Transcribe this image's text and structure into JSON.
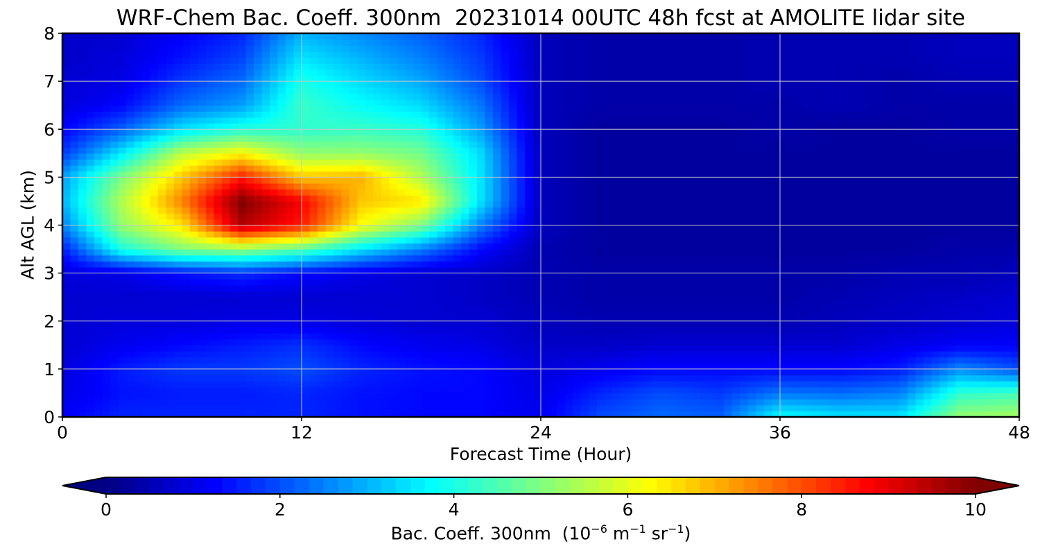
{
  "chart_data": {
    "type": "heatmap",
    "title": "WRF-Chem Bac. Coeff. 300nm  20231014 00UTC 48h fcst at AMOLITE lidar site",
    "xlabel": "Forecast Time (Hour)",
    "ylabel": "Alt AGL (km)",
    "colorbar_label_main": "Bac. Coeff. 300nm  (10",
    "colorbar_label_exp1": "−6",
    "colorbar_label_m": " m",
    "colorbar_label_exp2": "−1",
    "colorbar_label_sr": " sr",
    "colorbar_label_exp3": "−1",
    "colorbar_label_close": ")",
    "xlim": [
      0,
      48
    ],
    "ylim": [
      0,
      8
    ],
    "x_ticks": [
      "0",
      "12",
      "24",
      "36",
      "48"
    ],
    "y_ticks": [
      "0",
      "1",
      "2",
      "3",
      "4",
      "5",
      "6",
      "7",
      "8"
    ],
    "colorbar_ticks": [
      "0",
      "2",
      "4",
      "6",
      "8",
      "10"
    ],
    "colorbar_range": [
      0,
      10
    ],
    "colorbar_extend": "both",
    "colormap": "jet",
    "grid": true,
    "x": [
      0,
      3,
      6,
      9,
      12,
      15,
      18,
      21,
      24,
      27,
      30,
      33,
      36,
      39,
      42,
      45,
      48
    ],
    "y": [
      0,
      0.5,
      1,
      1.5,
      2,
      2.5,
      3,
      3.5,
      4,
      4.5,
      5,
      5.5,
      6,
      6.5,
      7,
      7.5,
      8
    ],
    "z": [
      [
        1.2,
        1.6,
        1.6,
        1.6,
        1.6,
        1.4,
        1.3,
        1.3,
        1.1,
        2.0,
        2.3,
        2.2,
        3.8,
        3.5,
        3.5,
        5.2,
        5.4
      ],
      [
        1.0,
        1.4,
        1.5,
        1.5,
        1.6,
        1.4,
        1.3,
        1.3,
        1.0,
        1.6,
        2.0,
        1.8,
        2.4,
        2.3,
        2.5,
        4.2,
        4.4
      ],
      [
        0.9,
        1.5,
        1.8,
        1.8,
        2.0,
        1.6,
        1.4,
        1.3,
        0.9,
        1.1,
        1.3,
        1.3,
        1.3,
        1.3,
        1.5,
        2.6,
        2.0
      ],
      [
        0.8,
        1.1,
        1.3,
        1.5,
        1.7,
        1.3,
        1.1,
        1.0,
        0.7,
        0.7,
        0.8,
        0.8,
        0.8,
        0.8,
        1.0,
        1.2,
        1.2
      ],
      [
        0.8,
        0.9,
        0.9,
        1.0,
        1.0,
        0.9,
        0.8,
        0.8,
        0.6,
        0.5,
        0.5,
        0.5,
        0.5,
        0.6,
        0.7,
        0.8,
        0.9
      ],
      [
        0.8,
        0.8,
        0.8,
        0.8,
        0.8,
        0.8,
        0.8,
        0.7,
        0.5,
        0.4,
        0.4,
        0.4,
        0.4,
        0.5,
        0.6,
        0.7,
        0.8
      ],
      [
        0.9,
        1.0,
        1.4,
        1.7,
        1.3,
        1.0,
        0.8,
        0.7,
        0.5,
        0.4,
        0.4,
        0.4,
        0.4,
        0.4,
        0.5,
        0.5,
        0.6
      ],
      [
        1.5,
        4.0,
        5.0,
        5.2,
        4.6,
        3.5,
        2.5,
        1.3,
        0.5,
        0.3,
        0.3,
        0.3,
        0.3,
        0.3,
        0.3,
        0.4,
        0.4
      ],
      [
        2.5,
        5.2,
        6.5,
        9.5,
        8.5,
        6.2,
        5.0,
        2.5,
        0.6,
        0.3,
        0.3,
        0.3,
        0.3,
        0.3,
        0.3,
        0.3,
        0.3
      ],
      [
        3.0,
        5.5,
        7.5,
        10.0,
        8.8,
        6.8,
        6.5,
        3.5,
        0.6,
        0.3,
        0.3,
        0.3,
        0.3,
        0.3,
        0.3,
        0.3,
        0.3
      ],
      [
        2.8,
        5.0,
        6.8,
        8.5,
        6.8,
        7.0,
        5.5,
        3.5,
        0.6,
        0.3,
        0.3,
        0.3,
        0.3,
        0.3,
        0.3,
        0.3,
        0.3
      ],
      [
        1.8,
        3.6,
        5.6,
        6.3,
        5.2,
        5.2,
        4.9,
        3.4,
        0.6,
        0.3,
        0.3,
        0.3,
        0.3,
        0.3,
        0.3,
        0.3,
        0.3
      ],
      [
        1.2,
        2.2,
        3.5,
        4.1,
        4.2,
        4.3,
        4.1,
        2.8,
        0.6,
        0.3,
        0.3,
        0.3,
        0.4,
        0.3,
        0.3,
        0.4,
        0.4
      ],
      [
        0.9,
        1.3,
        2.3,
        2.8,
        4.3,
        3.8,
        3.4,
        2.4,
        0.6,
        0.4,
        0.4,
        0.4,
        0.4,
        0.5,
        0.4,
        0.4,
        0.4
      ],
      [
        0.8,
        1.0,
        1.8,
        2.3,
        4.0,
        3.4,
        2.9,
        2.0,
        0.6,
        0.4,
        0.4,
        0.4,
        0.5,
        0.5,
        0.4,
        0.5,
        0.5
      ],
      [
        0.7,
        0.9,
        1.4,
        1.9,
        3.5,
        3.0,
        2.5,
        1.8,
        0.6,
        0.4,
        0.4,
        0.4,
        0.5,
        0.5,
        0.5,
        0.6,
        0.6
      ],
      [
        0.7,
        0.8,
        1.2,
        1.6,
        3.0,
        2.6,
        2.2,
        1.6,
        0.6,
        0.4,
        0.4,
        0.4,
        0.5,
        0.5,
        0.5,
        0.6,
        0.6
      ]
    ]
  }
}
